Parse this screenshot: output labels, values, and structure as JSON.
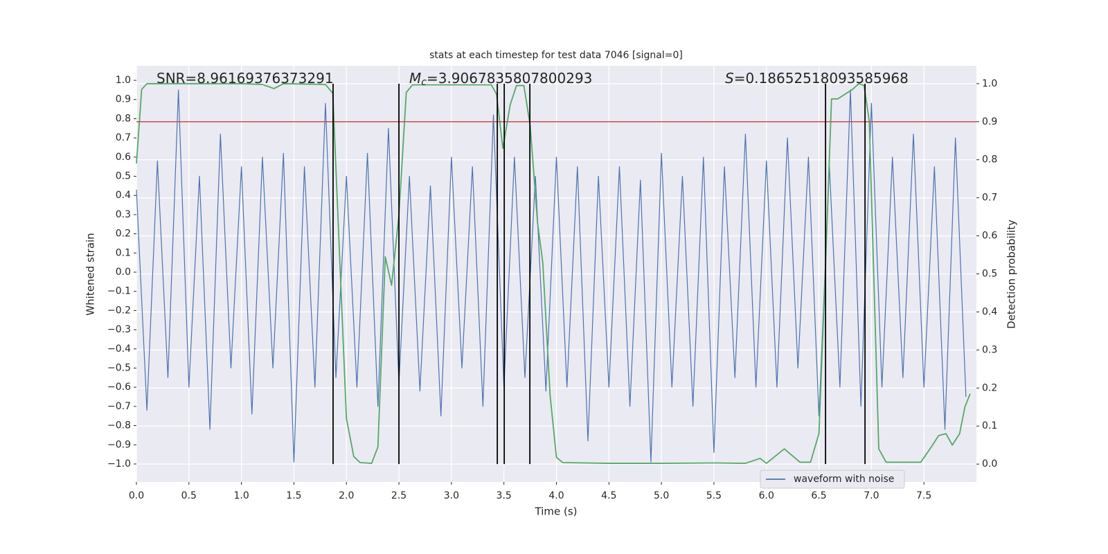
{
  "chart_data": {
    "type": "line",
    "title": "stats at each timestep for test data 7046 [signal=0]",
    "xlabel": "Time (s)",
    "ylabel": "Whitened strain",
    "y2label": "Detection probability",
    "xlim": [
      0,
      8
    ],
    "ylim": [
      -1.094,
      1.076
    ],
    "y2lim": [
      -0.047,
      1.047
    ],
    "xticks": [
      {
        "value": 0,
        "label": "0.0"
      },
      0.5,
      {
        "value": 1,
        "label": "1.0"
      },
      1.5,
      {
        "value": 2,
        "label": "2.0"
      },
      2.5,
      {
        "value": 3,
        "label": "3.0"
      },
      3.5,
      {
        "value": 4,
        "label": "4.0"
      },
      4.5,
      {
        "value": 5,
        "label": "5.0"
      },
      5.5,
      {
        "value": 6,
        "label": "6.0"
      },
      6.5,
      {
        "value": 7,
        "label": "7.0"
      },
      7.5
    ],
    "yticks": [
      {
        "value": 1,
        "label": "1.0"
      },
      0.9,
      0.8,
      0.7,
      0.6,
      0.5,
      0.4,
      0.3,
      0.2,
      0.1,
      {
        "value": 0,
        "label": "0.0"
      },
      {
        "value": -0.1,
        "label": "−0.1"
      },
      {
        "value": -0.2,
        "label": "−0.2"
      },
      {
        "value": -0.3,
        "label": "−0.3"
      },
      {
        "value": -0.4,
        "label": "−0.4"
      },
      {
        "value": -0.5,
        "label": "−0.5"
      },
      {
        "value": -0.6,
        "label": "−0.6"
      },
      {
        "value": -0.7,
        "label": "−0.7"
      },
      {
        "value": -0.8,
        "label": "−0.8"
      },
      {
        "value": -0.9,
        "label": "−0.9"
      },
      {
        "value": -1,
        "label": "−1.0"
      }
    ],
    "y2ticks": [
      {
        "value": 0,
        "label": "0.0"
      },
      0.1,
      0.2,
      0.3,
      0.4,
      0.5,
      0.6,
      0.7,
      0.8,
      0.9,
      {
        "value": 1,
        "label": "1.0"
      }
    ],
    "grid": true,
    "grid_y_axis": "y2",
    "legend": "lower right",
    "series": [
      {
        "name": "waveform with noise",
        "color": "#4c72b0",
        "axis": "y",
        "x": [
          0,
          0.1,
          0.2,
          0.3,
          0.4,
          0.5,
          0.6,
          0.7,
          0.8,
          0.9,
          1,
          1.1,
          1.2,
          1.3,
          1.4,
          1.5,
          1.6,
          1.7,
          1.8,
          1.9,
          2,
          2.1,
          2.2,
          2.3,
          2.4,
          2.5,
          2.6,
          2.7,
          2.8,
          2.9,
          3,
          3.1,
          3.2,
          3.3,
          3.4,
          3.5,
          3.6,
          3.7,
          3.8,
          3.9,
          4,
          4.1,
          4.2,
          4.3,
          4.4,
          4.5,
          4.6,
          4.7,
          4.8,
          4.9,
          5,
          5.1,
          5.2,
          5.3,
          5.4,
          5.5,
          5.6,
          5.7,
          5.8,
          5.9,
          6,
          6.1,
          6.2,
          6.3,
          6.4,
          6.5,
          6.6,
          6.7,
          6.8,
          6.9,
          7,
          7.1,
          7.2,
          7.3,
          7.4,
          7.5,
          7.6,
          7.7,
          7.8,
          7.9
        ],
        "values": [
          0.43,
          -0.72,
          0.58,
          -0.55,
          0.95,
          -0.6,
          0.5,
          -0.82,
          0.72,
          -0.5,
          0.55,
          -0.74,
          0.6,
          -0.5,
          0.62,
          -0.99,
          0.55,
          -0.6,
          0.88,
          -0.55,
          0.5,
          -0.6,
          0.62,
          -0.7,
          0.75,
          -0.58,
          0.5,
          -0.62,
          0.45,
          -0.75,
          0.6,
          -0.5,
          0.55,
          -0.7,
          0.82,
          -0.6,
          0.6,
          -0.55,
          0.5,
          -0.62,
          0.6,
          -0.6,
          0.55,
          -0.88,
          0.5,
          -0.6,
          0.55,
          -0.7,
          0.48,
          -0.99,
          0.62,
          -0.6,
          0.5,
          -0.7,
          0.6,
          -0.94,
          0.55,
          -0.55,
          0.72,
          -0.6,
          0.58,
          -0.6,
          0.7,
          -0.5,
          0.6,
          -0.75,
          0.55,
          -0.6,
          0.95,
          -0.7,
          0.88,
          -0.6,
          0.6,
          -0.55,
          0.72,
          -0.6,
          0.55,
          -0.82,
          0.7,
          -0.65
        ]
      },
      {
        "color": "#55a868",
        "axis": "y2",
        "x": [
          0,
          0.05,
          0.1,
          0.5,
          1.0,
          1.2,
          1.31,
          1.4,
          1.8,
          1.87,
          2.0,
          2.07,
          2.13,
          2.24,
          2.3,
          2.37,
          2.43,
          2.5,
          2.57,
          2.63,
          3.0,
          3.38,
          3.43,
          3.49,
          3.56,
          3.62,
          3.69,
          3.75,
          3.82,
          3.87,
          3.94,
          4.0,
          4.06,
          4.5,
          5.0,
          5.5,
          5.8,
          5.94,
          6.0,
          6.17,
          6.32,
          6.42,
          6.5,
          6.56,
          6.62,
          6.68,
          6.82,
          6.88,
          6.93,
          6.98,
          7.07,
          7.14,
          7.47,
          7.57,
          7.64,
          7.71,
          7.77,
          7.84,
          7.89,
          7.94
        ],
        "values": [
          0.79,
          0.985,
          1.0,
          1.0,
          1.0,
          0.998,
          0.987,
          1.0,
          0.998,
          0.975,
          0.12,
          0.02,
          0.004,
          0.002,
          0.045,
          0.545,
          0.47,
          0.655,
          0.977,
          0.997,
          0.997,
          0.997,
          0.972,
          0.83,
          0.945,
          0.995,
          0.995,
          0.89,
          0.635,
          0.53,
          0.18,
          0.018,
          0.004,
          0.002,
          0.002,
          0.003,
          0.002,
          0.015,
          0.002,
          0.04,
          0.005,
          0.005,
          0.08,
          0.5,
          0.96,
          0.96,
          0.985,
          1.0,
          0.995,
          0.9,
          0.04,
          0.005,
          0.005,
          0.045,
          0.075,
          0.08,
          0.05,
          0.08,
          0.15,
          0.185
        ]
      }
    ],
    "threshold": {
      "value": 0.9,
      "axis": "y2",
      "color": "#c44e52"
    },
    "vlines": [
      1.873,
      2.5,
      3.437,
      3.503,
      3.747,
      6.563,
      6.939
    ],
    "annotations": [
      {
        "text": "SNR=8.96169376373291"
      },
      {
        "italic": "M",
        "subscript": "c",
        "text": "=3.9067835807800293"
      },
      {
        "italic": "S",
        "text": "=0.18652518093585968"
      }
    ]
  }
}
